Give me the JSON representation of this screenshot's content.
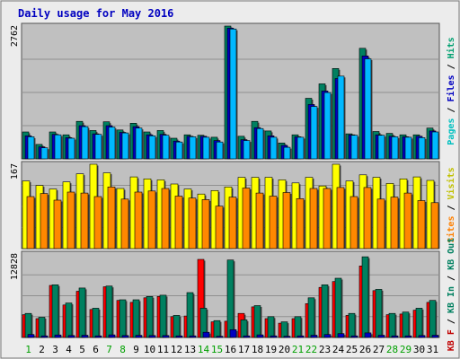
{
  "chart_data": {
    "type": "bar",
    "title": "Daily usage for May 2016",
    "categories": [
      "1",
      "2",
      "3",
      "4",
      "5",
      "6",
      "7",
      "8",
      "9",
      "10",
      "11",
      "12",
      "13",
      "14",
      "15",
      "16",
      "17",
      "18",
      "19",
      "20",
      "21",
      "22",
      "23",
      "24",
      "25",
      "26",
      "27",
      "28",
      "29",
      "30",
      "31"
    ],
    "weekend_days": [
      "1",
      "7",
      "8",
      "14",
      "15",
      "21",
      "22",
      "28",
      "29"
    ],
    "panels": [
      {
        "id": "pages-files-hits",
        "max_label": "2762",
        "ymax": 2762,
        "side_label_parts": [
          {
            "text": "Pages",
            "color": "#00c0c0"
          },
          {
            "text": " / ",
            "color": "#000000"
          },
          {
            "text": "Files",
            "color": "#0000c0"
          },
          {
            "text": " / ",
            "color": "#000000"
          },
          {
            "text": "Hits",
            "color": "#00a070"
          }
        ],
        "series": [
          {
            "name": "Hits",
            "color": "#008060",
            "values": [
              560,
              300,
              560,
              500,
              780,
              590,
              770,
              600,
              740,
              560,
              590,
              430,
              500,
              490,
              450,
              2762,
              470,
              780,
              580,
              330,
              500,
              1260,
              1560,
              1880,
              520,
              2300,
              570,
              530,
              500,
              500,
              640
            ]
          },
          {
            "name": "Files",
            "color": "#0000c0",
            "values": [
              480,
              250,
              510,
              440,
              690,
              520,
              690,
              550,
              670,
              500,
              510,
              370,
              470,
              470,
              380,
              2720,
              400,
              650,
              480,
              280,
              460,
              1130,
              1410,
              1670,
              500,
              2140,
              500,
              470,
              460,
              470,
              580
            ]
          },
          {
            "name": "Pages",
            "color": "#00b8ff",
            "values": [
              460,
              230,
              500,
              430,
              670,
              510,
              660,
              540,
              640,
              480,
              490,
              350,
              460,
              450,
              350,
              2700,
              380,
              630,
              450,
              240,
              450,
              1090,
              1380,
              1720,
              490,
              2080,
              490,
              460,
              450,
              440,
              560
            ]
          }
        ]
      },
      {
        "id": "visits-sites",
        "max_label": "167",
        "ymax": 167,
        "side_label_parts": [
          {
            "text": "Sites",
            "color": "#ff8000"
          },
          {
            "text": " / ",
            "color": "#000000"
          },
          {
            "text": "Visits",
            "color": "#c0c000"
          }
        ],
        "series": [
          {
            "name": "Visits",
            "color": "#ffff00",
            "values": [
              134,
              125,
              118,
              132,
              148,
              167,
              150,
              119,
              142,
              138,
              136,
              128,
              118,
              108,
              115,
              122,
              141,
              141,
              141,
              136,
              130,
              141,
              124,
              167,
              134,
              146,
              141,
              129,
              138,
              142,
              135
            ]
          },
          {
            "name": "Sites",
            "color": "#ff8800",
            "values": [
              103,
              109,
              96,
              112,
              110,
              103,
              122,
              98,
              112,
              114,
              119,
              104,
              100,
              97,
              84,
              102,
              120,
              110,
              104,
              111,
              99,
              119,
              119,
              121,
              103,
              121,
              98,
              102,
              110,
              95,
              91
            ]
          }
        ]
      },
      {
        "id": "kbin-kbout-kbf",
        "max_label": "12828",
        "ymax": 12828,
        "side_label_parts": [
          {
            "text": "KB F",
            "color": "#c00000"
          },
          {
            "text": " / ",
            "color": "#000000"
          },
          {
            "text": "KB In",
            "color": "#008060"
          },
          {
            "text": " / ",
            "color": "#000000"
          },
          {
            "text": "KB Out",
            "color": "#008060"
          }
        ],
        "series": [
          {
            "name": "KB F",
            "color": "#ff0000",
            "values": [
              3500,
              2900,
              8000,
              5000,
              7100,
              4300,
              7800,
              5700,
              5400,
              6100,
              6300,
              3200,
              3300,
              12000,
              2400,
              2500,
              3700,
              4700,
              2900,
              2200,
              2900,
              5200,
              7700,
              8600,
              3400,
              11000,
              7200,
              3500,
              3600,
              4200,
              5400
            ]
          },
          {
            "name": "KB In",
            "color": "#008060",
            "values": [
              3700,
              3100,
              8100,
              5300,
              7600,
              4500,
              7900,
              5800,
              5800,
              6300,
              6500,
              3400,
              6900,
              4500,
              2600,
              11900,
              2700,
              4900,
              3200,
              2400,
              3200,
              6100,
              8100,
              9100,
              3700,
              12400,
              7400,
              3700,
              3900,
              4500,
              5700
            ]
          },
          {
            "name": "KB Out",
            "color": "#0000c0",
            "values": [
              450,
              250,
              380,
              300,
              350,
              250,
              400,
              300,
              330,
              300,
              300,
              250,
              250,
              800,
              200,
              1200,
              250,
              400,
              250,
              200,
              250,
              350,
              450,
              600,
              250,
              700,
              350,
              250,
              250,
              300,
              350
            ]
          }
        ]
      }
    ]
  }
}
